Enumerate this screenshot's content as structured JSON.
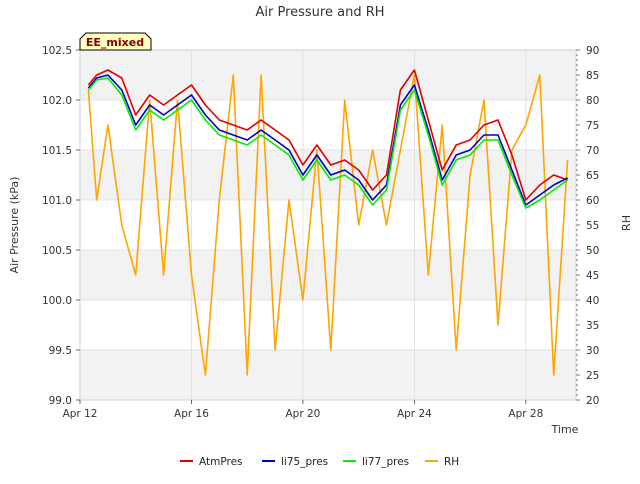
{
  "chart_data": {
    "type": "line",
    "title": "Air Pressure and RH",
    "xlabel": "Time",
    "ylabel": "Air Pressure (kPa)",
    "y2label": "RH",
    "annotation": "EE_mixed",
    "x_ticks": [
      "Apr 12",
      "Apr 16",
      "Apr 20",
      "Apr 24",
      "Apr 28"
    ],
    "x_tick_days": [
      12,
      16,
      20,
      24,
      28
    ],
    "xlim_days": [
      12,
      29.8
    ],
    "y_ticks": [
      "99.0",
      "99.5",
      "100.0",
      "100.5",
      "101.0",
      "101.5",
      "102.0",
      "102.5"
    ],
    "y2_ticks": [
      "20",
      "25",
      "30",
      "35",
      "40",
      "45",
      "50",
      "55",
      "60",
      "65",
      "70",
      "75",
      "80",
      "85",
      "90"
    ],
    "ylim": [
      99.0,
      102.5
    ],
    "y2lim": [
      20,
      90
    ],
    "grid": true,
    "legend_position": "bottom",
    "x_day": [
      12.3,
      12.6,
      13.0,
      13.5,
      14.0,
      14.5,
      15.0,
      15.5,
      16.0,
      16.5,
      17.0,
      17.5,
      18.0,
      18.5,
      19.0,
      19.5,
      20.0,
      20.5,
      21.0,
      21.5,
      22.0,
      22.5,
      23.0,
      23.5,
      24.0,
      24.5,
      25.0,
      25.5,
      26.0,
      26.5,
      27.0,
      27.5,
      28.0,
      28.5,
      29.0,
      29.5
    ],
    "series": [
      {
        "name": "AtmPres",
        "color": "#e00000",
        "axis": "left",
        "values": [
          102.15,
          102.25,
          102.3,
          102.22,
          101.85,
          102.05,
          101.95,
          102.05,
          102.15,
          101.95,
          101.8,
          101.75,
          101.7,
          101.8,
          101.7,
          101.6,
          101.35,
          101.55,
          101.35,
          101.4,
          101.3,
          101.1,
          101.25,
          102.1,
          102.3,
          101.8,
          101.3,
          101.55,
          101.6,
          101.75,
          101.8,
          101.45,
          101.0,
          101.15,
          101.25,
          101.2
        ]
      },
      {
        "name": "li75_pres",
        "color": "#0000cc",
        "axis": "left",
        "values": [
          102.12,
          102.22,
          102.25,
          102.1,
          101.75,
          101.95,
          101.85,
          101.95,
          102.05,
          101.85,
          101.7,
          101.65,
          101.6,
          101.7,
          101.6,
          101.5,
          101.25,
          101.45,
          101.25,
          101.3,
          101.2,
          101.0,
          101.15,
          101.95,
          102.15,
          101.7,
          101.2,
          101.45,
          101.5,
          101.65,
          101.65,
          101.3,
          100.95,
          101.05,
          101.15,
          101.22
        ]
      },
      {
        "name": "li77_pres",
        "color": "#00ee00",
        "axis": "left",
        "values": [
          102.1,
          102.2,
          102.22,
          102.05,
          101.7,
          101.9,
          101.8,
          101.9,
          102.0,
          101.8,
          101.65,
          101.6,
          101.55,
          101.65,
          101.55,
          101.45,
          101.2,
          101.4,
          101.2,
          101.25,
          101.15,
          100.95,
          101.1,
          101.9,
          102.1,
          101.65,
          101.15,
          101.4,
          101.45,
          101.6,
          101.6,
          101.25,
          100.92,
          101.0,
          101.1,
          101.2
        ]
      },
      {
        "name": "RH",
        "color": "#ffa500",
        "axis": "right",
        "values": [
          82,
          60,
          75,
          55,
          45,
          80,
          45,
          80,
          45,
          25,
          60,
          85,
          25,
          85,
          30,
          60,
          40,
          70,
          30,
          80,
          55,
          70,
          55,
          70,
          85,
          45,
          75,
          30,
          65,
          80,
          35,
          70,
          75,
          85,
          25,
          68
        ]
      }
    ]
  }
}
